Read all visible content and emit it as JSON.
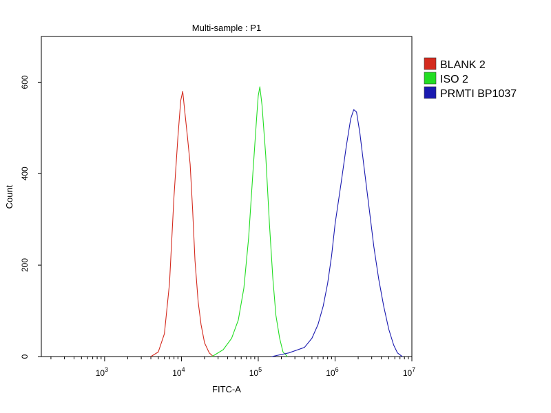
{
  "chart_data": {
    "type": "line",
    "title": "Multi-sample : P1",
    "xlabel": "FITC-A",
    "ylabel": "Count",
    "x_scale": "log",
    "xlim": [
      150,
      10000000
    ],
    "ylim": [
      0,
      700
    ],
    "grid": false,
    "legend_position": "right",
    "y_ticks": [
      {
        "value": 0,
        "label": "0"
      },
      {
        "value": 200,
        "label": "200"
      },
      {
        "value": 400,
        "label": "400"
      },
      {
        "value": 600,
        "label": "600"
      }
    ],
    "x_ticks": [
      {
        "value": 1000,
        "base": "10",
        "exp": "3"
      },
      {
        "value": 10000,
        "base": "10",
        "exp": "4"
      },
      {
        "value": 100000,
        "base": "10",
        "exp": "5"
      },
      {
        "value": 1000000,
        "base": "10",
        "exp": "6"
      },
      {
        "value": 10000000,
        "base": "10",
        "exp": "7"
      }
    ],
    "series": [
      {
        "name": "BLANK 2",
        "color": "#d42a1e",
        "x": [
          4000,
          5000,
          6000,
          7000,
          8000,
          9000,
          9800,
          10400,
          11000,
          12000,
          13000,
          14000,
          15000,
          16500,
          18000,
          20000,
          23000,
          26000
        ],
        "y": [
          0,
          10,
          50,
          160,
          350,
          480,
          560,
          580,
          540,
          480,
          420,
          320,
          210,
          120,
          70,
          30,
          8,
          0
        ]
      },
      {
        "name": "ISO 2",
        "color": "#22dd22",
        "x": [
          25000,
          35000,
          45000,
          55000,
          65000,
          75000,
          85000,
          95000,
          100000,
          105000,
          112000,
          125000,
          140000,
          155000,
          170000,
          190000,
          210000,
          240000
        ],
        "y": [
          0,
          15,
          40,
          80,
          150,
          260,
          400,
          520,
          570,
          590,
          550,
          440,
          290,
          170,
          90,
          40,
          10,
          0
        ]
      },
      {
        "name": "PRMTI BP1037",
        "color": "#1a1ab0",
        "x": [
          150000,
          250000,
          400000,
          500000,
          600000,
          700000,
          800000,
          900000,
          1000000,
          1200000,
          1400000,
          1600000,
          1750000,
          1900000,
          2100000,
          2400000,
          2800000,
          3200000,
          3700000,
          4300000,
          5000000,
          5800000,
          6500000,
          7500000
        ],
        "y": [
          0,
          8,
          20,
          40,
          70,
          110,
          160,
          220,
          290,
          380,
          460,
          520,
          540,
          535,
          490,
          410,
          320,
          240,
          170,
          110,
          60,
          25,
          8,
          0
        ]
      }
    ]
  }
}
